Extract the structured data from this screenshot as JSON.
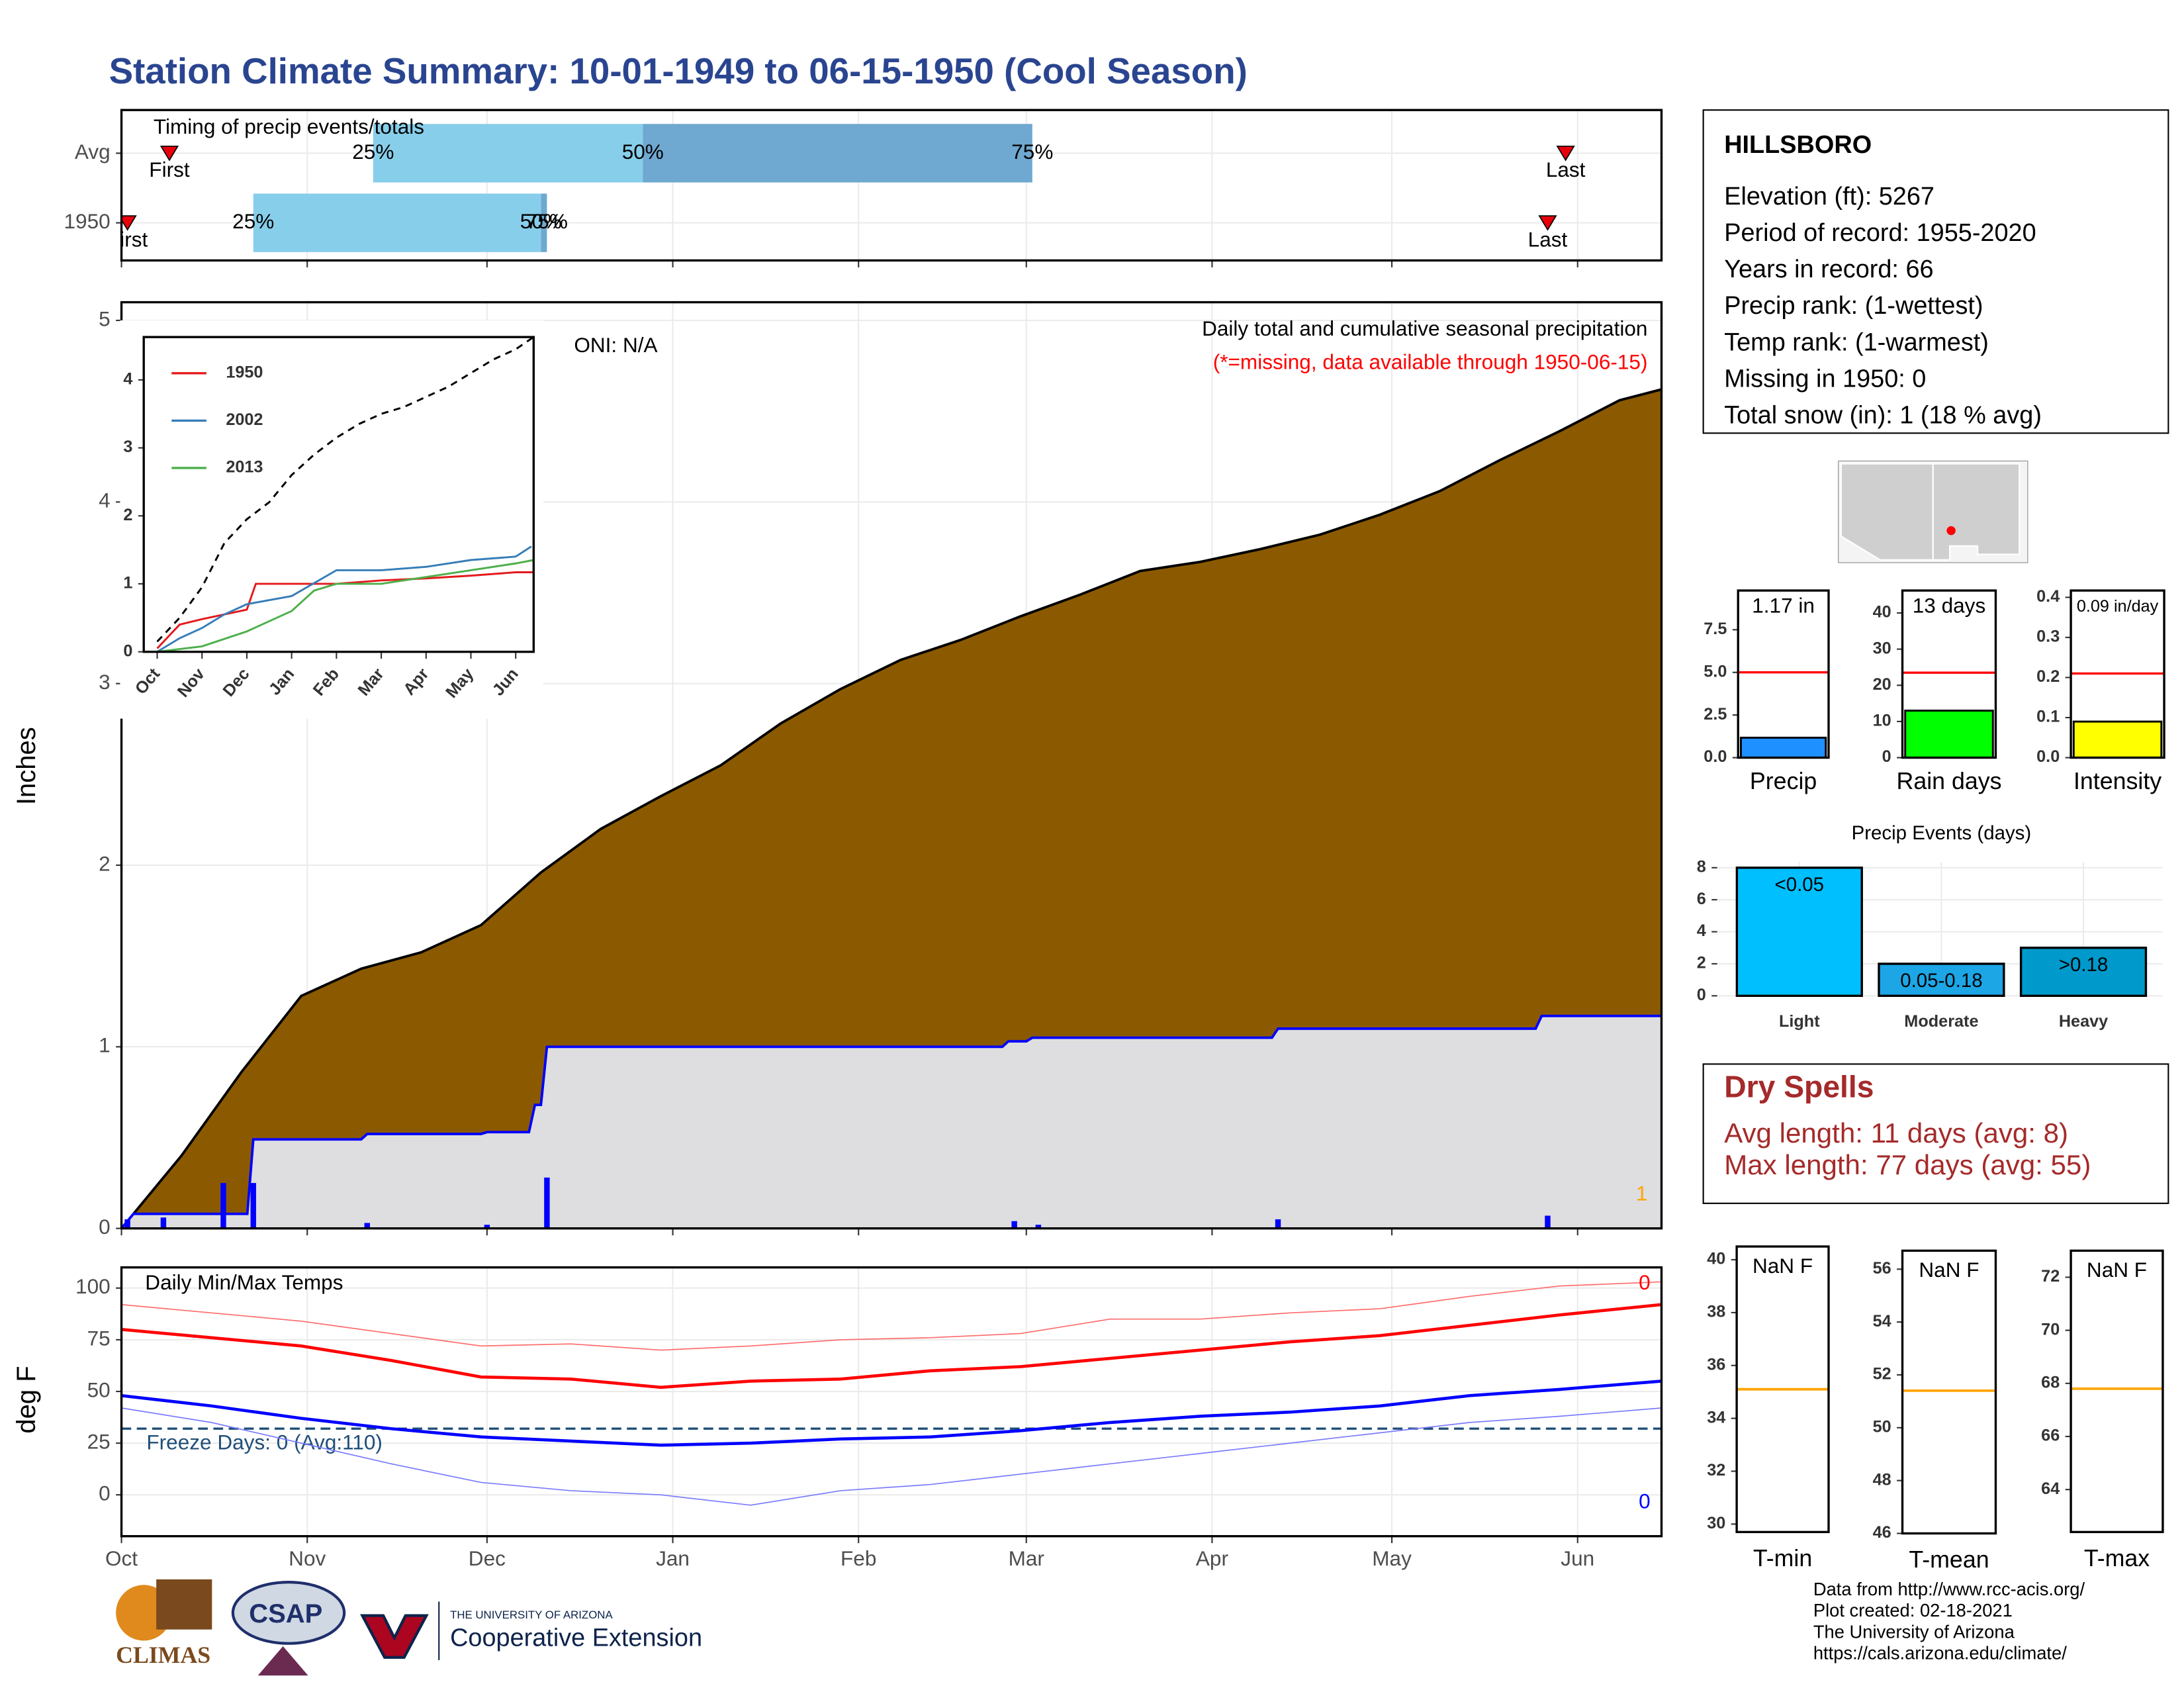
{
  "title": "Station Climate Summary: 10-01-1949 to 06-15-1950 (Cool Season)",
  "station": {
    "name": "HILLSBORO",
    "lines": [
      "Elevation (ft): 5267",
      "Period of record: 1955-2020",
      "Years in record: 66",
      "Precip rank:  (1-wettest)",
      "Temp rank:  (1-warmest)",
      "Missing in 1950: 0",
      "Total snow (in): 1 (18 % avg)"
    ]
  },
  "dry_spells": {
    "title": "Dry Spells",
    "lines": [
      "Avg length: 11 days (avg: 8)",
      "Max length: 77 days (avg: 55)"
    ]
  },
  "footer": {
    "logos": [
      "CLIMAS",
      "CSAP",
      "THE UNIVERSITY OF ARIZONA",
      "Cooperative Extension"
    ],
    "credits": [
      "Data from http://www.rcc-acis.org/",
      "Plot created: 02-18-2021",
      "The University of Arizona",
      "https://cals.arizona.edu/climate/"
    ]
  },
  "chart_data": [
    {
      "type": "timing",
      "title": "Timing of precip events/totals",
      "categories": [
        "Avg",
        "1950"
      ],
      "first": [
        8,
        1
      ],
      "p25": [
        42,
        22
      ],
      "p50": [
        87,
        70
      ],
      "p75": [
        152,
        71
      ],
      "last": [
        241,
        238
      ],
      "marker_labels": {
        "first": "First",
        "p25": "25%",
        "p50": "50%",
        "p75": "75%",
        "last": "Last"
      },
      "colors": {
        "early": "#87ceeb",
        "late": "#6fa8d0",
        "marker": "#e8000b"
      },
      "xlim": [
        0,
        257
      ]
    },
    {
      "type": "area",
      "ylabel": "Inches",
      "xlim": [
        0,
        257
      ],
      "ylim": [
        0,
        5.1
      ],
      "yticks": [
        0,
        1,
        2,
        3,
        4,
        5
      ],
      "grid": true,
      "xticks": [
        {
          "value": 0,
          "label": "Oct"
        },
        {
          "value": 31,
          "label": "Nov"
        },
        {
          "value": 61,
          "label": "Dec"
        },
        {
          "value": 92,
          "label": "Jan"
        },
        {
          "value": 123,
          "label": "Feb"
        },
        {
          "value": 151,
          "label": "Mar"
        },
        {
          "value": 182,
          "label": "Apr"
        },
        {
          "value": 212,
          "label": "May"
        },
        {
          "value": 243,
          "label": "Jun"
        }
      ],
      "series": [
        {
          "kind": "area",
          "fill": "#8b5a00",
          "color": "#000000",
          "x": [
            0,
            10,
            20,
            30,
            40,
            50,
            60,
            70,
            80,
            90,
            100,
            110,
            120,
            130,
            140,
            150,
            160,
            170,
            180,
            190,
            200,
            210,
            220,
            230,
            240,
            250,
            257
          ],
          "values": [
            0,
            0.4,
            0.86,
            1.28,
            1.43,
            1.52,
            1.67,
            1.96,
            2.2,
            2.38,
            2.55,
            2.78,
            2.97,
            3.13,
            3.24,
            3.37,
            3.49,
            3.62,
            3.67,
            3.74,
            3.82,
            3.93,
            4.06,
            4.23,
            4.39,
            4.56,
            4.62
          ]
        },
        {
          "kind": "area",
          "fill": "#dedee0",
          "color": "#0000ff",
          "x": [
            0,
            1,
            2,
            21,
            22,
            40,
            41,
            60,
            61,
            68,
            69,
            70,
            71,
            147,
            148,
            151,
            152,
            192,
            193,
            236,
            237,
            257
          ],
          "values": [
            0,
            0.04,
            0.08,
            0.08,
            0.49,
            0.49,
            0.52,
            0.52,
            0.53,
            0.53,
            0.68,
            0.68,
            1.0,
            1.0,
            1.03,
            1.03,
            1.05,
            1.05,
            1.1,
            1.1,
            1.17,
            1.17
          ]
        },
        {
          "kind": "bars",
          "color": "#0000ff",
          "x": [
            1,
            7,
            17,
            22,
            41,
            61,
            71,
            149,
            153,
            193,
            238
          ],
          "values": [
            0.05,
            0.06,
            0.25,
            0.25,
            0.03,
            0.02,
            0.28,
            0.04,
            0.02,
            0.05,
            0.07
          ]
        }
      ],
      "annotations": [
        {
          "text": "Daily total and cumulative seasonal precipitation",
          "color": "#000000"
        },
        {
          "text": "(*=missing, data available through 1950-06-15)",
          "color": "#ff0000"
        },
        {
          "text": "ONI: N/A",
          "color": "#000000"
        },
        {
          "text": "1",
          "color": "#ffa500"
        }
      ]
    },
    {
      "type": "line",
      "xlim": [
        -0.3,
        8.4
      ],
      "ylim": [
        0,
        4.63
      ],
      "yticks": [
        0,
        1,
        2,
        3,
        4
      ],
      "xticks": [
        {
          "value": 0,
          "label": "Oct"
        },
        {
          "value": 1,
          "label": "Nov"
        },
        {
          "value": 2,
          "label": "Dec"
        },
        {
          "value": 3,
          "label": "Jan"
        },
        {
          "value": 4,
          "label": "Feb"
        },
        {
          "value": 5,
          "label": "Mar"
        },
        {
          "value": 6,
          "label": "Apr"
        },
        {
          "value": 7,
          "label": "May"
        },
        {
          "value": 8,
          "label": "Jun"
        }
      ],
      "legend": "top-left",
      "series": [
        {
          "color": "#000000",
          "dash": true,
          "x": [
            0,
            0.5,
            1,
            1.5,
            2,
            2.5,
            3,
            3.5,
            4,
            4.5,
            5,
            5.5,
            6,
            6.5,
            7,
            7.5,
            8,
            8.4
          ],
          "values": [
            0.15,
            0.5,
            0.95,
            1.6,
            1.95,
            2.2,
            2.6,
            2.9,
            3.15,
            3.35,
            3.5,
            3.6,
            3.75,
            3.9,
            4.1,
            4.3,
            4.45,
            4.63
          ]
        },
        {
          "name": "1950",
          "color": "#e41a1c",
          "x": [
            0,
            0.5,
            1,
            1.5,
            2,
            2.2,
            3,
            4,
            5,
            6,
            7,
            8,
            8.4
          ],
          "values": [
            0.05,
            0.4,
            0.48,
            0.55,
            0.62,
            1.0,
            1.0,
            1.0,
            1.05,
            1.08,
            1.12,
            1.17,
            1.17
          ]
        },
        {
          "name": "2002",
          "color": "#377eb8",
          "x": [
            0,
            0.5,
            1,
            1.5,
            2,
            3,
            4,
            4.5,
            5,
            6,
            7,
            8,
            8.35
          ],
          "values": [
            0,
            0.2,
            0.35,
            0.55,
            0.7,
            0.82,
            1.2,
            1.2,
            1.2,
            1.25,
            1.35,
            1.4,
            1.55
          ]
        },
        {
          "name": "2013",
          "color": "#4daf4a",
          "x": [
            0,
            1,
            2,
            3,
            3.5,
            4,
            5,
            6,
            7,
            8,
            8.4
          ],
          "values": [
            0,
            0.08,
            0.3,
            0.6,
            0.9,
            1.0,
            1.0,
            1.1,
            1.2,
            1.3,
            1.35
          ]
        }
      ]
    },
    {
      "type": "line",
      "title": "Daily Min/Max Temps",
      "ylabel": "deg F",
      "xlim": [
        0,
        257
      ],
      "ylim": [
        -20,
        110
      ],
      "yticks": [
        0,
        25,
        50,
        75,
        100
      ],
      "grid": true,
      "xticks": [
        {
          "value": 0,
          "label": "Oct"
        },
        {
          "value": 31,
          "label": "Nov"
        },
        {
          "value": 61,
          "label": "Dec"
        },
        {
          "value": 92,
          "label": "Jan"
        },
        {
          "value": 123,
          "label": "Feb"
        },
        {
          "value": 151,
          "label": "Mar"
        },
        {
          "value": 182,
          "label": "Apr"
        },
        {
          "value": 212,
          "label": "May"
        },
        {
          "value": 243,
          "label": "Jun"
        }
      ],
      "x": [
        0,
        15,
        30,
        45,
        60,
        75,
        90,
        105,
        120,
        135,
        150,
        165,
        180,
        195,
        210,
        225,
        240,
        257
      ],
      "series": [
        {
          "color": "#ff6b6b",
          "width": 0.8,
          "values": [
            92,
            88,
            84,
            78,
            72,
            73,
            70,
            72,
            75,
            76,
            78,
            85,
            85,
            88,
            90,
            96,
            101,
            103
          ]
        },
        {
          "color": "#7b7bff",
          "width": 0.8,
          "values": [
            42,
            35,
            25,
            15,
            6,
            2,
            0,
            -5,
            2,
            5,
            10,
            15,
            20,
            25,
            30,
            35,
            38,
            42
          ]
        },
        {
          "color": "#ff0000",
          "width": 2.2,
          "values": [
            80,
            76,
            72,
            65,
            57,
            56,
            52,
            55,
            56,
            60,
            62,
            66,
            70,
            74,
            77,
            82,
            87,
            92
          ]
        },
        {
          "color": "#0000ff",
          "width": 2.2,
          "values": [
            48,
            43,
            37,
            32,
            28,
            26,
            24,
            25,
            27,
            28,
            31,
            35,
            38,
            40,
            43,
            48,
            51,
            55
          ]
        }
      ],
      "threshold": 32,
      "threshold_label": "Freeze Days: 0 (Avg:110)",
      "threshold_color": "#1f4e79",
      "annotations": [
        {
          "text": "0",
          "color": "#ff0000"
        },
        {
          "text": "0",
          "color": "#0000ff"
        }
      ]
    },
    {
      "type": "gauge",
      "xlabel": "Precip",
      "value": 1.17,
      "value_label": "1.17 in",
      "reference": 5.0,
      "color": "#1e90ff",
      "reference_color": "#ff0000",
      "ylim": [
        0,
        9.8
      ],
      "yticks": [
        {
          "value": 0,
          "label": "0.0"
        },
        {
          "value": 2.5,
          "label": "2.5"
        },
        {
          "value": 5,
          "label": "5.0"
        },
        {
          "value": 7.5,
          "label": "7.5"
        }
      ]
    },
    {
      "type": "gauge",
      "xlabel": "Rain days",
      "value": 13,
      "value_label": "13 days",
      "reference": 23.5,
      "color": "#00ff00",
      "reference_color": "#ff0000",
      "ylim": [
        0,
        46.2
      ],
      "yticks": [
        0,
        10,
        20,
        30,
        40
      ]
    },
    {
      "type": "gauge",
      "xlabel": "Intensity",
      "value": 0.09,
      "value_label": "0.09 in/day",
      "reference": 0.21,
      "color": "#ffff00",
      "reference_color": "#ff0000",
      "ylim": [
        0,
        0.417
      ],
      "yticks": [
        {
          "value": 0,
          "label": "0.0"
        },
        {
          "value": 0.1,
          "label": "0.1"
        },
        {
          "value": 0.2,
          "label": "0.2"
        },
        {
          "value": 0.3,
          "label": "0.3"
        },
        {
          "value": 0.4,
          "label": "0.4"
        }
      ]
    },
    {
      "type": "bar",
      "title": "Precip Events (days)",
      "categories": [
        "Light",
        "Moderate",
        "Heavy"
      ],
      "values": [
        8,
        2,
        3
      ],
      "value_labels": [
        "<0.05",
        "0.05-0.18",
        ">0.18"
      ],
      "colors": [
        "#00bfff",
        "#1ca6e6",
        "#0099cc"
      ],
      "ylim": [
        0,
        8.35
      ],
      "yticks": [
        0,
        2,
        4,
        6,
        8
      ],
      "grid": true
    },
    {
      "type": "normal",
      "xlabel": "T-min",
      "value_label": "NaN F",
      "normal": 35.1,
      "color": "#ffa500",
      "ylim": [
        29.7,
        40.5
      ],
      "yticks": [
        30,
        32,
        34,
        36,
        38,
        40
      ]
    },
    {
      "type": "normal",
      "xlabel": "T-mean",
      "value_label": "NaN F",
      "normal": 51.4,
      "color": "#ffa500",
      "ylim": [
        46,
        56.7
      ],
      "yticks": [
        46,
        48,
        50,
        52,
        54,
        56
      ]
    },
    {
      "type": "normal",
      "xlabel": "T-max",
      "value_label": "NaN F",
      "normal": 67.8,
      "color": "#ffa500",
      "ylim": [
        62.4,
        73
      ],
      "yticks": [
        64,
        66,
        68,
        70,
        72
      ]
    }
  ]
}
